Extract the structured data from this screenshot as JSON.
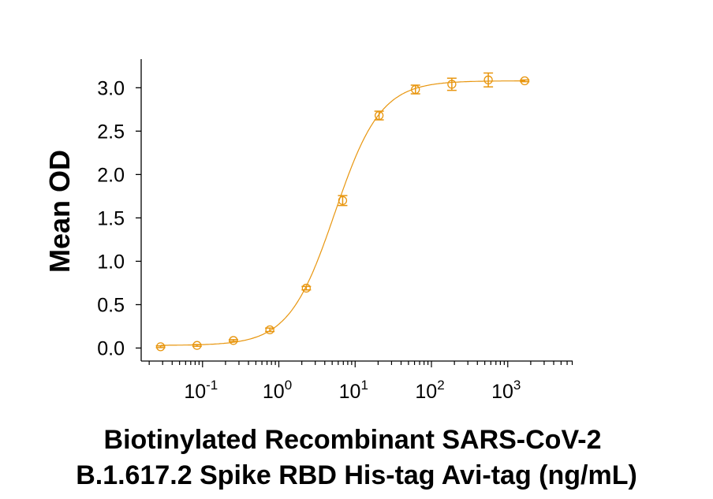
{
  "chart_data": {
    "type": "scatter",
    "title": "",
    "xlabel_lines": [
      "Biotinylated Recombinant SARS-CoV-2",
      "B.1.617.2 Spike RBD His-tag Avi-tag (ng/mL)"
    ],
    "ylabel": "Mean OD",
    "x_scale": "log",
    "xlim": [
      0.0157,
      7080
    ],
    "ylim": [
      -0.15,
      3.33
    ],
    "x_ticks": [
      {
        "value": 0.1,
        "base": "10",
        "exp": "-1"
      },
      {
        "value": 1,
        "base": "10",
        "exp": "0"
      },
      {
        "value": 10,
        "base": "10",
        "exp": "1"
      },
      {
        "value": 100,
        "base": "10",
        "exp": "2"
      },
      {
        "value": 1000,
        "base": "10",
        "exp": "3"
      }
    ],
    "y_ticks": [
      {
        "value": 0,
        "label": "0.0"
      },
      {
        "value": 0.5,
        "label": "0.5"
      },
      {
        "value": 1,
        "label": "1.0"
      },
      {
        "value": 1.5,
        "label": "1.5"
      },
      {
        "value": 2,
        "label": "2.0"
      },
      {
        "value": 2.5,
        "label": "2.5"
      },
      {
        "value": 3,
        "label": "3.0"
      }
    ],
    "grid": false,
    "legend": "none",
    "color": "#E8960F",
    "points": [
      {
        "x": 0.0282,
        "y": 0.015,
        "err": 0.01
      },
      {
        "x": 0.0847,
        "y": 0.03,
        "err": 0.01
      },
      {
        "x": 0.254,
        "y": 0.087,
        "err": 0.01
      },
      {
        "x": 0.762,
        "y": 0.21,
        "err": 0.02
      },
      {
        "x": 2.29,
        "y": 0.69,
        "err": 0.02
      },
      {
        "x": 6.86,
        "y": 1.7,
        "err": 0.057
      },
      {
        "x": 20.6,
        "y": 2.68,
        "err": 0.05
      },
      {
        "x": 61.7,
        "y": 2.98,
        "err": 0.05
      },
      {
        "x": 185,
        "y": 3.04,
        "err": 0.07
      },
      {
        "x": 556,
        "y": 3.09,
        "err": 0.08
      },
      {
        "x": 1667,
        "y": 3.08,
        "err": 0.01
      }
    ],
    "fit": {
      "model": "4PL",
      "bottom": 0.03,
      "top": 3.08,
      "ec50": 5.41,
      "hill": 1.445
    }
  }
}
